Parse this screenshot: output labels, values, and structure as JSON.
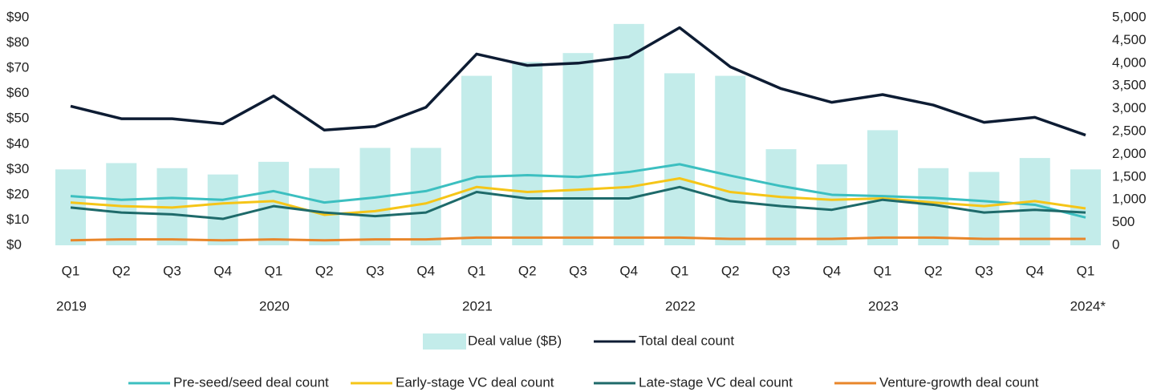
{
  "chart_data": {
    "type": "bar",
    "categories": [
      "Q1",
      "Q2",
      "Q3",
      "Q4",
      "Q1",
      "Q2",
      "Q3",
      "Q4",
      "Q1",
      "Q2",
      "Q3",
      "Q4",
      "Q1",
      "Q2",
      "Q3",
      "Q4",
      "Q1",
      "Q2",
      "Q3",
      "Q4",
      "Q1"
    ],
    "years": [
      "2019",
      null,
      null,
      null,
      "2020",
      null,
      null,
      null,
      "2021",
      null,
      null,
      null,
      "2022",
      null,
      null,
      null,
      "2023",
      null,
      null,
      null,
      "2024*"
    ],
    "ylim": [
      0,
      90
    ],
    "yticks": [
      {
        "value": 0,
        "label": "$0"
      },
      {
        "value": 10,
        "label": "$10"
      },
      {
        "value": 20,
        "label": "$20"
      },
      {
        "value": 30,
        "label": "$30"
      },
      {
        "value": 40,
        "label": "$40"
      },
      {
        "value": 50,
        "label": "$50"
      },
      {
        "value": 60,
        "label": "$60"
      },
      {
        "value": 70,
        "label": "$70"
      },
      {
        "value": 80,
        "label": "$80"
      },
      {
        "value": 90,
        "label": "$90"
      }
    ],
    "y2lim": [
      0,
      5000
    ],
    "y2ticks": [
      0,
      500,
      {
        "value": 1000,
        "label": "1,000"
      },
      {
        "value": 1500,
        "label": "1,500"
      },
      {
        "value": 2000,
        "label": "2,000"
      },
      {
        "value": 2500,
        "label": "2,500"
      },
      {
        "value": 3000,
        "label": "3,000"
      },
      {
        "value": 3500,
        "label": "3,500"
      },
      {
        "value": 4000,
        "label": "4,000"
      },
      {
        "value": 4500,
        "label": "4,500"
      },
      {
        "value": 5000,
        "label": "5,000"
      }
    ],
    "series": [
      {
        "name": "Deal value ($B)",
        "type": "bar",
        "color": "#c3ecea",
        "values": [
          30,
          32.5,
          30.5,
          28,
          33,
          30.5,
          38.5,
          38.5,
          67,
          72.5,
          76,
          87.5,
          68,
          67,
          38,
          32,
          45.5,
          30.5,
          29,
          34.5,
          30
        ]
      },
      {
        "name": "Total deal count",
        "type": "line",
        "axis": "y2",
        "color": "#0d1c33",
        "values": [
          3056,
          2780,
          2780,
          2670,
          3280,
          2530,
          2610,
          3030,
          4200,
          3950,
          4000,
          4140,
          4780,
          3920,
          3440,
          3140,
          3310,
          3080,
          2700,
          2810,
          2420
        ]
      },
      {
        "name": "Pre-seed/seed deal count",
        "type": "line",
        "axis": "y2",
        "color": "#3cbfc0",
        "values": [
          1080,
          1000,
          1040,
          1000,
          1190,
          940,
          1050,
          1190,
          1500,
          1540,
          1500,
          1610,
          1780,
          1530,
          1300,
          1110,
          1080,
          1040,
          970,
          890,
          610
        ]
      },
      {
        "name": "Early-stage VC deal count",
        "type": "line",
        "axis": "y2",
        "color": "#f5c518",
        "values": [
          940,
          860,
          830,
          920,
          970,
          670,
          750,
          920,
          1280,
          1170,
          1220,
          1280,
          1470,
          1170,
          1060,
          1000,
          1030,
          940,
          860,
          970,
          810
        ]
      },
      {
        "name": "Late-stage VC deal count",
        "type": "line",
        "axis": "y2",
        "color": "#1e6a6a",
        "values": [
          830,
          720,
          680,
          580,
          860,
          720,
          640,
          720,
          1170,
          1030,
          1030,
          1030,
          1280,
          970,
          860,
          780,
          1000,
          890,
          720,
          780,
          720
        ]
      },
      {
        "name": "Venture-growth deal count",
        "type": "line",
        "axis": "y2",
        "color": "#e8862a",
        "values": [
          110,
          130,
          130,
          110,
          130,
          110,
          130,
          130,
          170,
          170,
          170,
          170,
          170,
          140,
          140,
          140,
          170,
          170,
          140,
          140,
          140
        ]
      }
    ]
  }
}
